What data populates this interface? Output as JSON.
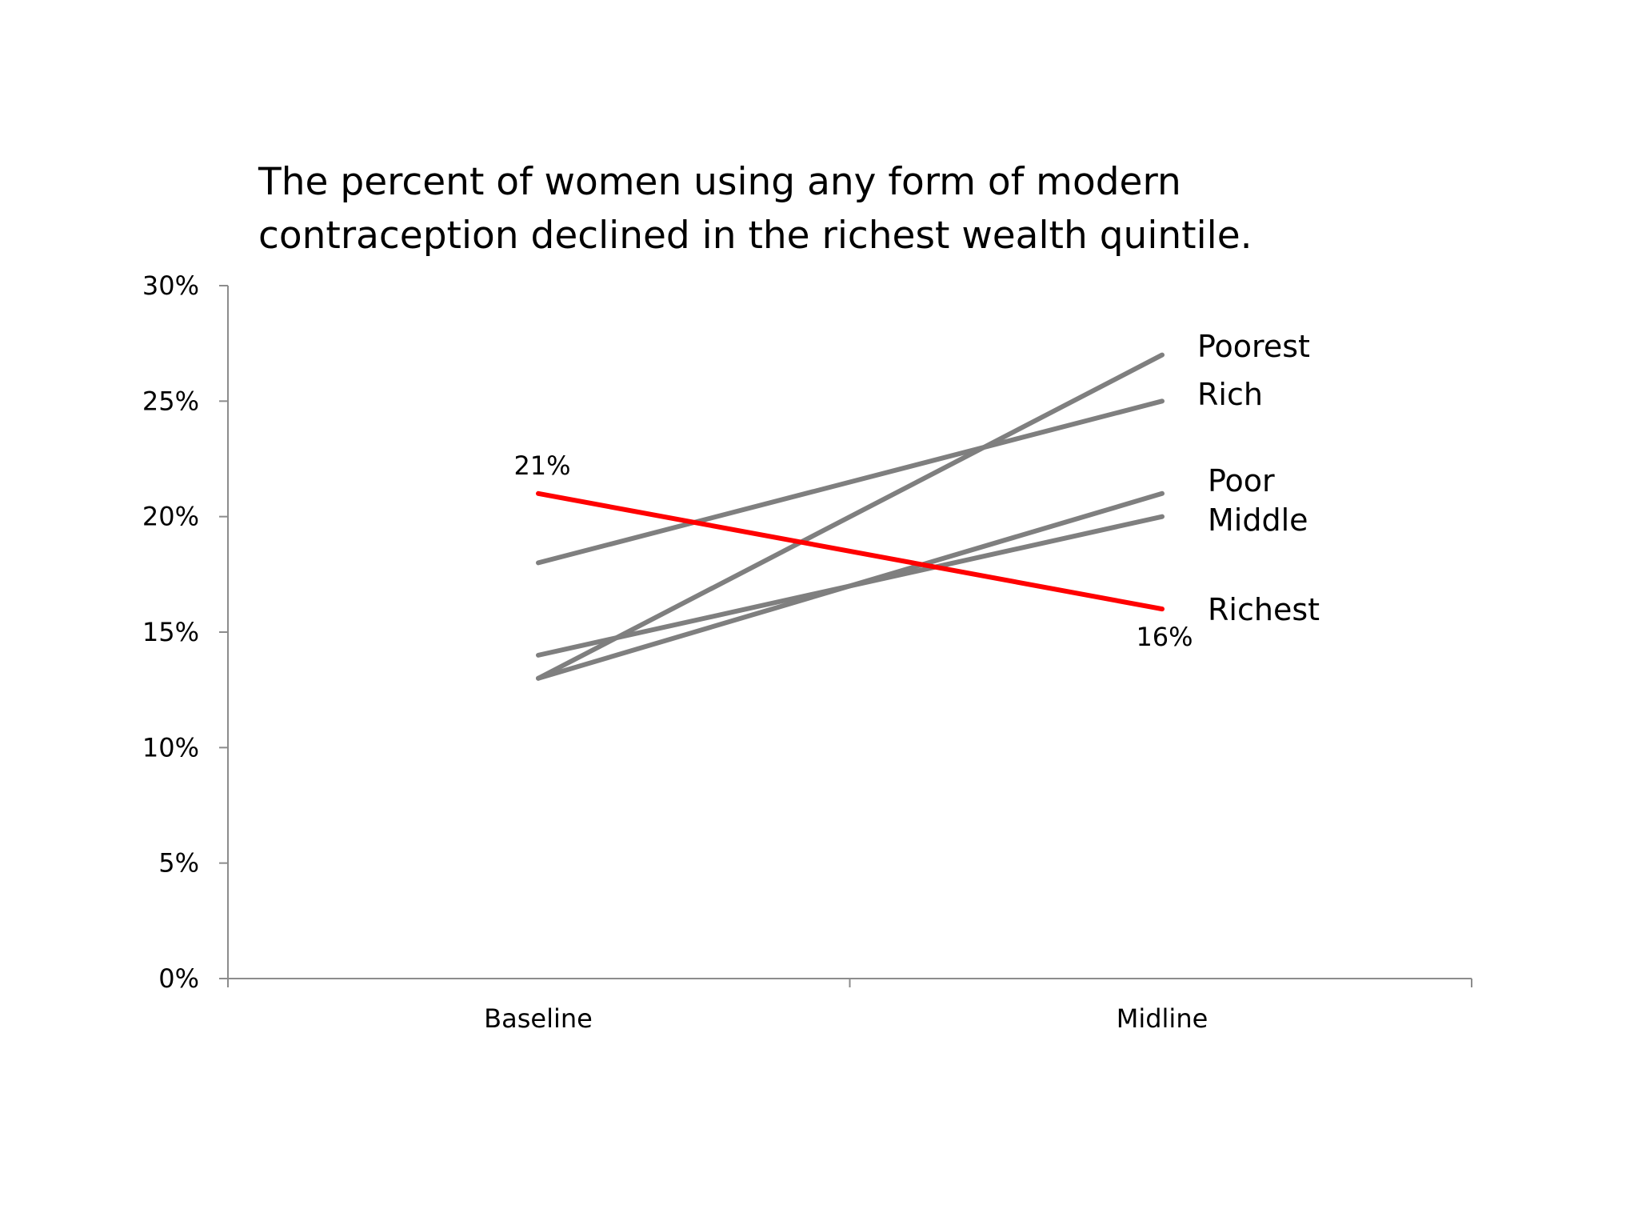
{
  "chart_data": {
    "type": "line",
    "title_lines": [
      "The percent of women using any form of modern",
      "contraception declined in the richest wealth quintile."
    ],
    "categories": [
      "Baseline",
      "Midline"
    ],
    "ylim": [
      0,
      30
    ],
    "yticks": [
      0,
      5,
      10,
      15,
      20,
      25,
      30
    ],
    "ytick_labels": [
      "0%",
      "5%",
      "10%",
      "15%",
      "20%",
      "25%",
      "30%"
    ],
    "grid": false,
    "legend": "direct labels at line ends",
    "series": [
      {
        "name": "Poorest",
        "values": [
          13,
          27
        ],
        "color": "#7f7f7f"
      },
      {
        "name": "Rich",
        "values": [
          18,
          25
        ],
        "color": "#7f7f7f"
      },
      {
        "name": "Poor",
        "values": [
          13,
          21
        ],
        "color": "#7f7f7f"
      },
      {
        "name": "Middle",
        "values": [
          14,
          20
        ],
        "color": "#7f7f7f"
      },
      {
        "name": "Richest",
        "values": [
          21,
          16
        ],
        "color": "#ff0000",
        "data_labels": [
          "21%",
          "16%"
        ]
      }
    ]
  }
}
